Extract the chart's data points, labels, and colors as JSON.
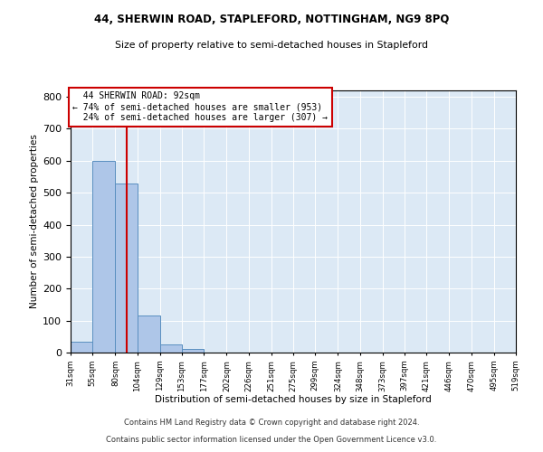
{
  "title1": "44, SHERWIN ROAD, STAPLEFORD, NOTTINGHAM, NG9 8PQ",
  "title2": "Size of property relative to semi-detached houses in Stapleford",
  "xlabel": "Distribution of semi-detached houses by size in Stapleford",
  "ylabel": "Number of semi-detached properties",
  "footer1": "Contains HM Land Registry data © Crown copyright and database right 2024.",
  "footer2": "Contains public sector information licensed under the Open Government Licence v3.0.",
  "property_size": 92,
  "property_label": "44 SHERWIN ROAD: 92sqm",
  "pct_smaller": 74,
  "count_smaller": 953,
  "pct_larger": 24,
  "count_larger": 307,
  "bar_color": "#aec6e8",
  "bar_edge_color": "#5a8fc0",
  "vline_color": "#cc0000",
  "box_edge_color": "#cc0000",
  "background_color": "#dce9f5",
  "bin_edges": [
    31,
    55,
    80,
    104,
    129,
    153,
    177,
    202,
    226,
    251,
    275,
    299,
    324,
    348,
    373,
    397,
    421,
    446,
    470,
    495,
    519
  ],
  "bin_labels": [
    "31sqm",
    "55sqm",
    "80sqm",
    "104sqm",
    "129sqm",
    "153sqm",
    "177sqm",
    "202sqm",
    "226sqm",
    "251sqm",
    "275sqm",
    "299sqm",
    "324sqm",
    "348sqm",
    "373sqm",
    "397sqm",
    "421sqm",
    "446sqm",
    "470sqm",
    "495sqm",
    "519sqm"
  ],
  "counts": [
    35,
    600,
    530,
    116,
    26,
    10,
    0,
    0,
    0,
    0,
    0,
    0,
    0,
    0,
    0,
    0,
    0,
    0,
    0,
    0
  ],
  "ylim": [
    0,
    820
  ],
  "yticks": [
    0,
    100,
    200,
    300,
    400,
    500,
    600,
    700,
    800
  ]
}
